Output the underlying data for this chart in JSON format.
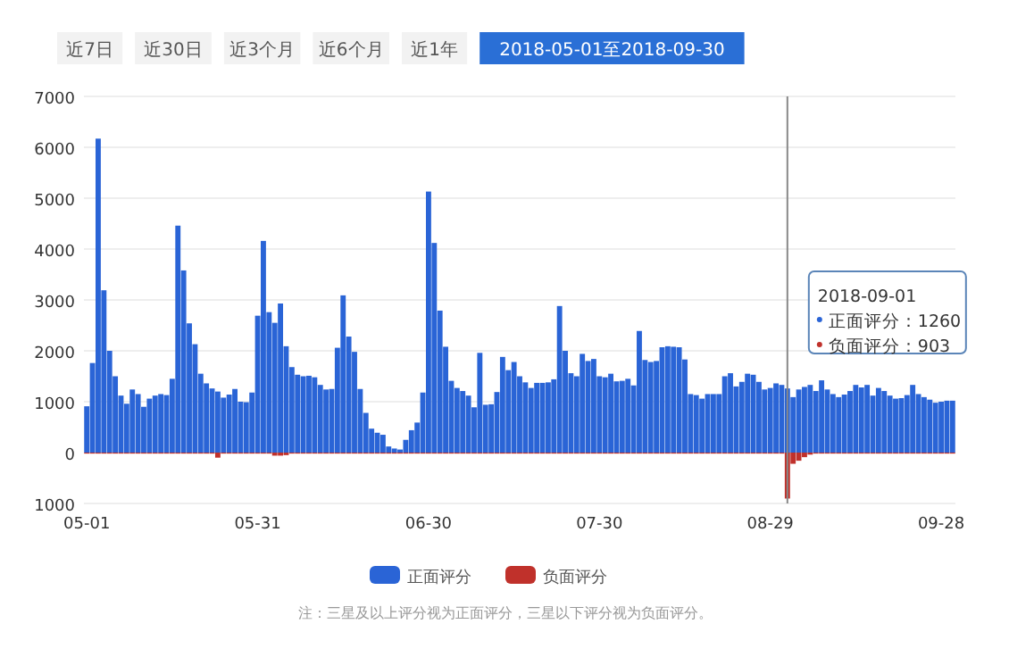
{
  "chart_data": {
    "type": "bar",
    "x": [
      "2018-05-01",
      "2018-05-02",
      "2018-05-03",
      "2018-05-04",
      "2018-05-05",
      "2018-05-06",
      "2018-05-07",
      "2018-05-08",
      "2018-05-09",
      "2018-05-10",
      "2018-05-11",
      "2018-05-12",
      "2018-05-13",
      "2018-05-14",
      "2018-05-15",
      "2018-05-16",
      "2018-05-17",
      "2018-05-18",
      "2018-05-19",
      "2018-05-20",
      "2018-05-21",
      "2018-05-22",
      "2018-05-23",
      "2018-05-24",
      "2018-05-25",
      "2018-05-26",
      "2018-05-27",
      "2018-05-28",
      "2018-05-29",
      "2018-05-30",
      "2018-05-31",
      "2018-06-01",
      "2018-06-02",
      "2018-06-03",
      "2018-06-04",
      "2018-06-05",
      "2018-06-06",
      "2018-06-07",
      "2018-06-08",
      "2018-06-09",
      "2018-06-10",
      "2018-06-11",
      "2018-06-12",
      "2018-06-13",
      "2018-06-14",
      "2018-06-15",
      "2018-06-16",
      "2018-06-17",
      "2018-06-18",
      "2018-06-19",
      "2018-06-20",
      "2018-06-21",
      "2018-06-22",
      "2018-06-23",
      "2018-06-24",
      "2018-06-25",
      "2018-06-26",
      "2018-06-27",
      "2018-06-28",
      "2018-06-29",
      "2018-06-30",
      "2018-07-01",
      "2018-07-02",
      "2018-07-03",
      "2018-07-04",
      "2018-07-05",
      "2018-07-06",
      "2018-07-07",
      "2018-07-08",
      "2018-07-09",
      "2018-07-10",
      "2018-07-11",
      "2018-07-12",
      "2018-07-13",
      "2018-07-14",
      "2018-07-15",
      "2018-07-16",
      "2018-07-17",
      "2018-07-18",
      "2018-07-19",
      "2018-07-20",
      "2018-07-21",
      "2018-07-22",
      "2018-07-23",
      "2018-07-24",
      "2018-07-25",
      "2018-07-26",
      "2018-07-27",
      "2018-07-28",
      "2018-07-29",
      "2018-07-30",
      "2018-07-31",
      "2018-08-01",
      "2018-08-02",
      "2018-08-03",
      "2018-08-04",
      "2018-08-05",
      "2018-08-06",
      "2018-08-07",
      "2018-08-08",
      "2018-08-09",
      "2018-08-10",
      "2018-08-11",
      "2018-08-12",
      "2018-08-13",
      "2018-08-14",
      "2018-08-15",
      "2018-08-16",
      "2018-08-17",
      "2018-08-18",
      "2018-08-19",
      "2018-08-20",
      "2018-08-21",
      "2018-08-22",
      "2018-08-23",
      "2018-08-24",
      "2018-08-25",
      "2018-08-26",
      "2018-08-27",
      "2018-08-28",
      "2018-08-29",
      "2018-08-30",
      "2018-08-31",
      "2018-09-01",
      "2018-09-02",
      "2018-09-03",
      "2018-09-04",
      "2018-09-05",
      "2018-09-06",
      "2018-09-07",
      "2018-09-08",
      "2018-09-09",
      "2018-09-10",
      "2018-09-11",
      "2018-09-12",
      "2018-09-13",
      "2018-09-14",
      "2018-09-15",
      "2018-09-16",
      "2018-09-17",
      "2018-09-18",
      "2018-09-19",
      "2018-09-20",
      "2018-09-21",
      "2018-09-22",
      "2018-09-23",
      "2018-09-24",
      "2018-09-25",
      "2018-09-26",
      "2018-09-27",
      "2018-09-28",
      "2018-09-29",
      "2018-09-30"
    ],
    "series": [
      {
        "name": "正面评分",
        "color": "#2a64d6",
        "values": [
          910,
          1760,
          6170,
          3190,
          2000,
          1500,
          1120,
          960,
          1240,
          1150,
          900,
          1060,
          1120,
          1150,
          1130,
          1450,
          4460,
          3580,
          2540,
          2130,
          1550,
          1360,
          1260,
          1200,
          1080,
          1140,
          1250,
          1000,
          990,
          1180,
          2690,
          4160,
          2760,
          2550,
          2930,
          2090,
          1680,
          1530,
          1500,
          1510,
          1480,
          1330,
          1240,
          1250,
          2060,
          3090,
          2280,
          1980,
          1250,
          780,
          470,
          390,
          350,
          120,
          80,
          60,
          250,
          440,
          590,
          1180,
          5130,
          4120,
          2790,
          2080,
          1410,
          1270,
          1210,
          1120,
          890,
          1960,
          940,
          950,
          1190,
          1880,
          1620,
          1780,
          1500,
          1380,
          1270,
          1370,
          1370,
          1380,
          1440,
          2880,
          2000,
          1560,
          1500,
          1940,
          1800,
          1840,
          1500,
          1480,
          1550,
          1400,
          1410,
          1450,
          1320,
          2390,
          1820,
          1780,
          1800,
          2070,
          2090,
          2080,
          2070,
          1830,
          1150,
          1130,
          1060,
          1150,
          1150,
          1150,
          1500,
          1560,
          1300,
          1390,
          1550,
          1530,
          1390,
          1240,
          1270,
          1360,
          1330,
          1260,
          1090,
          1240,
          1290,
          1330,
          1210,
          1420,
          1240,
          1150,
          1090,
          1140,
          1210,
          1330,
          1280,
          1330,
          1120,
          1270,
          1210,
          1120,
          1060,
          1070,
          1130,
          1330,
          1150,
          1090,
          1040,
          980,
          1000,
          1020,
          1020
        ]
      },
      {
        "name": "负面评分",
        "color": "#c0312b",
        "values": [
          -20,
          -20,
          -20,
          -20,
          -20,
          -20,
          -20,
          -20,
          -20,
          -20,
          -20,
          -20,
          -20,
          -20,
          -20,
          -20,
          -20,
          -20,
          -20,
          -20,
          -20,
          -20,
          -20,
          -100,
          -20,
          -20,
          -20,
          -20,
          -20,
          -20,
          -20,
          -20,
          -20,
          -60,
          -60,
          -50,
          -20,
          -20,
          -20,
          -20,
          -20,
          -20,
          -20,
          -20,
          -20,
          -20,
          -20,
          -20,
          -20,
          -20,
          -20,
          -20,
          -20,
          -20,
          -20,
          -20,
          -20,
          -20,
          -20,
          -20,
          -20,
          -20,
          -20,
          -20,
          -20,
          -20,
          -20,
          -20,
          -20,
          -20,
          -20,
          -20,
          -20,
          -20,
          -20,
          -20,
          -20,
          -20,
          -20,
          -20,
          -20,
          -20,
          -20,
          -20,
          -20,
          -20,
          -20,
          -20,
          -20,
          -20,
          -20,
          -20,
          -20,
          -20,
          -20,
          -20,
          -20,
          -20,
          -20,
          -20,
          -20,
          -20,
          -20,
          -20,
          -20,
          -20,
          -20,
          -20,
          -20,
          -20,
          -20,
          -20,
          -20,
          -20,
          -20,
          -20,
          -20,
          -20,
          -20,
          -20,
          -20,
          -20,
          -20,
          -903,
          -220,
          -160,
          -90,
          -40,
          -20,
          -20,
          -20,
          -20,
          -20,
          -20,
          -20,
          -20,
          -20,
          -20,
          -20,
          -20,
          -20,
          -20,
          -20,
          -20,
          -20,
          -20,
          -20,
          -20,
          -20,
          -20,
          -20,
          -20,
          -20
        ]
      }
    ],
    "xlim": [
      "2018-04-30T12:00",
      "2018-09-30T12:00"
    ],
    "xticks": [
      {
        "value": "2018-05-01",
        "label": "05-01"
      },
      {
        "value": "2018-05-31",
        "label": "05-31"
      },
      {
        "value": "2018-06-30",
        "label": "06-30"
      },
      {
        "value": "2018-07-30",
        "label": "07-30"
      },
      {
        "value": "2018-08-29",
        "label": "08-29"
      },
      {
        "value": "2018-09-28",
        "label": "09-28"
      }
    ],
    "ylim": [
      -1000,
      7000
    ],
    "yticks": [
      {
        "value": -1000,
        "label": "1000"
      },
      0,
      1000,
      2000,
      3000,
      4000,
      5000,
      6000,
      7000
    ],
    "grid": "y",
    "legend": "bottom",
    "ref_lines": [
      {
        "axis": "x",
        "value": "2018-09-01",
        "color": "#888888"
      }
    ],
    "annotations": [
      "近7日",
      "近30日",
      "近3个月",
      "近6个月",
      "近1年",
      "2018-05-01至2018-09-30",
      "2018-09-01",
      "正面评分：1260",
      "负面评分：903",
      "注：三星及以上评分视为正面评分，三星以下评分视为负面评分。"
    ]
  }
}
